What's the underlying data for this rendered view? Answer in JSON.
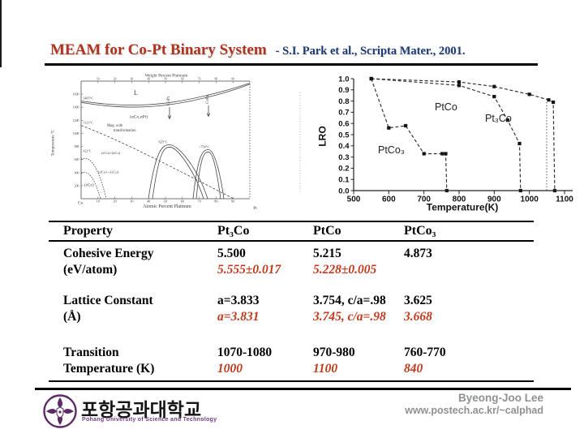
{
  "slide": {
    "title": "MEAM for Co-Pt Binary System",
    "citation": "- S.I. Park et al., Scripta Mater., 2001.",
    "colors": {
      "title_red": "#b0331f",
      "citation_navy": "#1c3a74",
      "calc_value_red": "#c03a1e",
      "footer_gray": "#8e9093",
      "logo_purple": "#5d2a66"
    }
  },
  "chart_data": [
    {
      "id": "co-pt-phase-diagram",
      "type": "line",
      "title": "Co-Pt equilibrium phase diagram (scanned figure)",
      "xlabel_top": "Weight Percent Platinum",
      "xlabel_bottom": "Atomic Percent Platinum",
      "ylabel": "Temperature °C",
      "xlim": [
        0,
        100
      ],
      "ylim": [
        0,
        1800
      ],
      "x_ticks": [
        10,
        20,
        30,
        40,
        50,
        60,
        70,
        80,
        90
      ],
      "y_tick_labels": [
        1600,
        1400,
        1200,
        1000,
        800,
        600,
        400,
        200
      ],
      "x_end_labels": [
        "Co",
        "Pt"
      ],
      "labels": {
        "liquid": "L",
        "co_melting": "1495°C",
        "curie": "1121°C",
        "fcc_region": "(αCo,αPt)",
        "magnetic_line1": "Mag. with",
        "magnetic_line2": "transformation",
        "copt_peak": "825°C",
        "copt_phase": "CoPt",
        "copt3_peak": "~750°C",
        "copt3_phase": "CoPt₃",
        "eps_alpha_region": "(εCo)+(αCo)",
        "alpha_to_eps": "(αCo)→(εCo)",
        "eps_region": "(εCo)",
        "eps_temp": "422°C"
      }
    },
    {
      "id": "lro-vs-temperature",
      "type": "line",
      "xlabel": "Temperature(K)",
      "ylabel": "LRO",
      "xlim": [
        500,
        1100
      ],
      "ylim": [
        0.0,
        1.0
      ],
      "x_ticks": [
        500,
        600,
        700,
        800,
        900,
        1000,
        1100
      ],
      "y_ticks": [
        "1.0",
        "0.9",
        "0.8",
        "0.7",
        "0.6",
        "0.5",
        "0.4",
        "0.3",
        "0.2",
        "0.1",
        "0.0"
      ],
      "grid": false,
      "legend_position": "inline-labels",
      "series": [
        {
          "name": "Pt3Co",
          "label": "Pt₃Co",
          "points": [
            [
              550,
              1.0
            ],
            [
              800,
              0.97
            ],
            [
              900,
              0.93
            ],
            [
              1000,
              0.86
            ],
            [
              1055,
              0.81
            ],
            [
              1068,
              0.79
            ],
            [
              1072,
              0.0
            ]
          ]
        },
        {
          "name": "PtCo",
          "label": "PtCo",
          "points": [
            [
              550,
              1.0
            ],
            [
              800,
              0.94
            ],
            [
              900,
              0.84
            ],
            [
              938,
              0.63
            ],
            [
              972,
              0.42
            ],
            [
              975,
              0.0
            ]
          ]
        },
        {
          "name": "PtCo3",
          "label": "PtCo₃",
          "points": [
            [
              550,
              1.0
            ],
            [
              600,
              0.56
            ],
            [
              648,
              0.58
            ],
            [
              700,
              0.33
            ],
            [
              752,
              0.33
            ],
            [
              762,
              0.33
            ],
            [
              765,
              0.0
            ]
          ]
        }
      ]
    }
  ],
  "table": {
    "headers": [
      "Property",
      "Pt₃Co",
      "PtCo",
      "PtCo₃"
    ],
    "rows": [
      {
        "property": [
          "Cohesive Energy",
          "(eV/atom)"
        ],
        "values": [
          {
            "exp": "5.500",
            "calc": "5.555±0.017"
          },
          {
            "exp": "5.215",
            "calc": "5.228±0.005"
          },
          {
            "exp": "4.873",
            "calc": ""
          }
        ]
      },
      {
        "property": [
          "Lattice Constant",
          "(Å)"
        ],
        "values": [
          {
            "exp": "a=3.833",
            "calc": "a=3.831"
          },
          {
            "exp": "3.754, c/a=.98",
            "calc": "3.745, c/a=.98"
          },
          {
            "exp": "3.625",
            "calc": "3.668"
          }
        ]
      },
      {
        "property": [
          "Transition",
          "Temperature (K)"
        ],
        "values": [
          {
            "exp": "1070-1080",
            "calc": "1000"
          },
          {
            "exp": "970-980",
            "calc": "1100"
          },
          {
            "exp": "760-770",
            "calc": "840"
          }
        ]
      }
    ]
  },
  "footer": {
    "university_korean": "포항공과대학교",
    "university_english": "Pohang University of Science and Technology",
    "author": "Byeong-Joo Lee",
    "website": "www.postech.ac.kr/~calphad"
  }
}
